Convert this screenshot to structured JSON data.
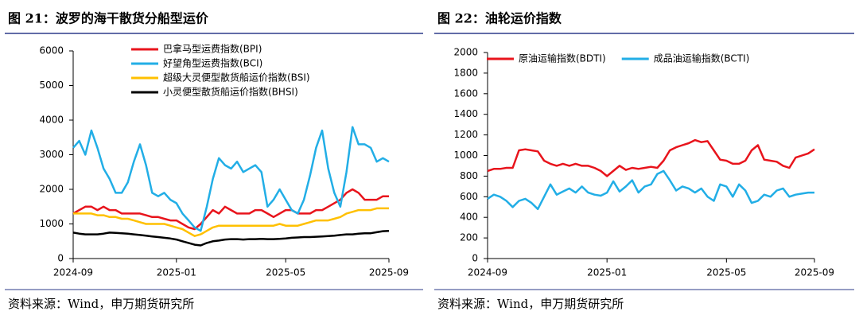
{
  "chart_data": [
    {
      "type": "line",
      "title": "图 21：波罗的海干散货分船型运价",
      "source": "资料来源：Wind，申万期货研究所",
      "categories": [
        "2024-09",
        null,
        null,
        null,
        null,
        null,
        null,
        null,
        null,
        null,
        null,
        null,
        null,
        null,
        null,
        null,
        null,
        "2025-01",
        null,
        null,
        null,
        null,
        null,
        null,
        null,
        null,
        null,
        null,
        null,
        null,
        null,
        null,
        null,
        null,
        null,
        "2025-05",
        null,
        null,
        null,
        null,
        null,
        null,
        null,
        null,
        null,
        null,
        null,
        null,
        null,
        null,
        null,
        null,
        "2025-09"
      ],
      "ylim": [
        0,
        6000
      ],
      "yticks": [
        0,
        1000,
        2000,
        3000,
        4000,
        5000,
        6000
      ],
      "grid": false,
      "legend": "upper left",
      "series": [
        {
          "name": "巴拿马型运费指数(BPI)",
          "color": "#e8141c",
          "values": [
            1300,
            1400,
            1500,
            1500,
            1400,
            1500,
            1400,
            1400,
            1300,
            1300,
            1300,
            1300,
            1250,
            1200,
            1200,
            1150,
            1100,
            1100,
            1000,
            900,
            850,
            1000,
            1200,
            1400,
            1300,
            1500,
            1400,
            1300,
            1300,
            1300,
            1400,
            1400,
            1300,
            1200,
            1300,
            1400,
            1400,
            1300,
            1300,
            1300,
            1400,
            1400,
            1500,
            1600,
            1700,
            1900,
            2000,
            1900,
            1700,
            1700,
            1700,
            1800,
            1800
          ]
        },
        {
          "name": "好望角型运费指数(BCI)",
          "color": "#22aee6",
          "values": [
            3200,
            3400,
            3000,
            3700,
            3200,
            2600,
            2300,
            1900,
            1900,
            2200,
            2800,
            3300,
            2700,
            1900,
            1800,
            1900,
            1700,
            1600,
            1300,
            1100,
            900,
            800,
            1500,
            2300,
            2900,
            2700,
            2600,
            2800,
            2500,
            2600,
            2700,
            2500,
            1500,
            1700,
            2000,
            1700,
            1400,
            1300,
            1700,
            2400,
            3200,
            3700,
            2600,
            1900,
            1500,
            2500,
            3800,
            3300,
            3300,
            3200,
            2800,
            2900,
            2800
          ]
        },
        {
          "name": "超级大灵便型散货船运价指数(BSI)",
          "color": "#ffc000",
          "values": [
            1300,
            1300,
            1300,
            1300,
            1250,
            1250,
            1200,
            1200,
            1150,
            1150,
            1100,
            1050,
            1000,
            1000,
            1000,
            1000,
            950,
            900,
            850,
            750,
            650,
            700,
            800,
            900,
            950,
            950,
            950,
            950,
            950,
            950,
            950,
            950,
            950,
            950,
            1000,
            950,
            950,
            950,
            1000,
            1050,
            1100,
            1100,
            1100,
            1150,
            1200,
            1300,
            1350,
            1400,
            1400,
            1400,
            1450,
            1450,
            1450
          ]
        },
        {
          "name": "小灵便型散货船运价指数(BHSI)",
          "color": "#000000",
          "values": [
            750,
            720,
            700,
            700,
            700,
            720,
            750,
            740,
            730,
            720,
            700,
            680,
            660,
            640,
            620,
            600,
            580,
            550,
            500,
            450,
            400,
            380,
            450,
            500,
            520,
            550,
            560,
            560,
            550,
            560,
            560,
            570,
            560,
            560,
            570,
            580,
            600,
            610,
            620,
            620,
            630,
            640,
            650,
            660,
            680,
            700,
            700,
            720,
            730,
            730,
            760,
            790,
            800
          ]
        }
      ]
    },
    {
      "type": "line",
      "title": "图 22：油轮运价指数",
      "source": "资料来源：Wind，申万期货研究所",
      "categories": [
        "2024-09",
        null,
        null,
        null,
        null,
        null,
        null,
        null,
        null,
        null,
        null,
        null,
        null,
        null,
        null,
        null,
        null,
        null,
        null,
        "2025-01",
        null,
        null,
        null,
        null,
        null,
        null,
        null,
        null,
        null,
        null,
        null,
        null,
        null,
        null,
        null,
        null,
        null,
        null,
        "2025-05",
        null,
        null,
        null,
        null,
        null,
        null,
        null,
        null,
        null,
        null,
        null,
        null,
        null,
        "2025-09"
      ],
      "ylim": [
        0,
        2000
      ],
      "yticks": [
        0,
        200,
        400,
        600,
        800,
        1000,
        1200,
        1400,
        1600,
        1800,
        2000
      ],
      "grid": false,
      "legend": "upper left",
      "series": [
        {
          "name": "原油运输指数(BDTI)",
          "color": "#e8141c",
          "values": [
            850,
            870,
            870,
            880,
            880,
            1050,
            1060,
            1050,
            1040,
            950,
            920,
            900,
            920,
            900,
            920,
            900,
            900,
            880,
            850,
            800,
            850,
            900,
            860,
            880,
            870,
            880,
            890,
            880,
            950,
            1050,
            1080,
            1100,
            1120,
            1150,
            1130,
            1140,
            1050,
            960,
            950,
            920,
            920,
            950,
            1050,
            1100,
            960,
            950,
            940,
            900,
            880,
            980,
            1000,
            1020,
            1060
          ]
        },
        {
          "name": "成品油运输指数(BCTI)",
          "color": "#22aee6",
          "values": [
            580,
            620,
            600,
            560,
            500,
            560,
            580,
            540,
            480,
            600,
            720,
            620,
            650,
            680,
            640,
            700,
            640,
            620,
            610,
            640,
            750,
            650,
            700,
            760,
            640,
            700,
            720,
            820,
            850,
            760,
            660,
            700,
            680,
            640,
            680,
            600,
            560,
            720,
            700,
            600,
            720,
            660,
            540,
            560,
            620,
            600,
            660,
            680,
            600,
            620,
            630,
            640,
            640
          ]
        }
      ]
    }
  ]
}
